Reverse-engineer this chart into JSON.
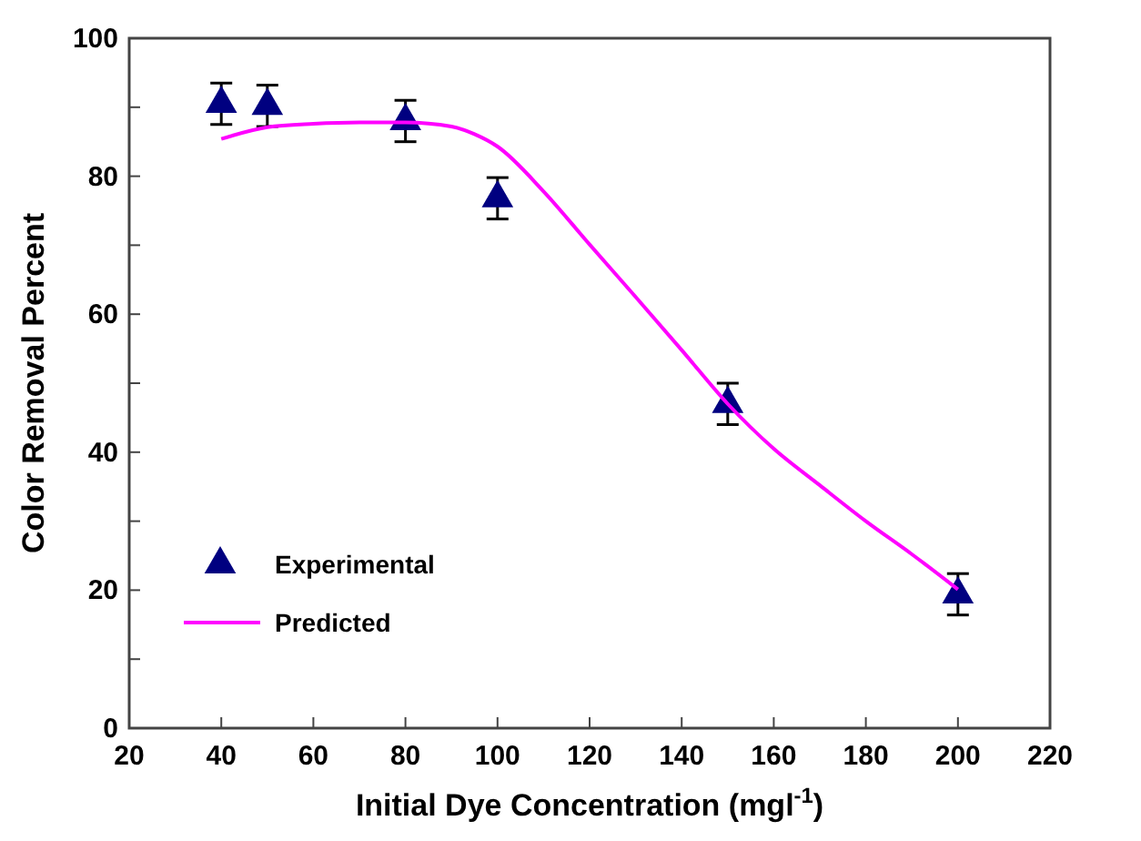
{
  "chart_data": {
    "type": "scatter",
    "xlabel": "Initial Dye Concentration (mgl$^{-1}$)",
    "ylabel": "Color Removal Percent",
    "xlim": [
      20,
      220
    ],
    "ylim": [
      0,
      100
    ],
    "xticks": [
      20,
      40,
      60,
      80,
      100,
      120,
      140,
      160,
      180,
      200,
      220
    ],
    "yticks": [
      0,
      {
        "value": 10,
        "label": null
      },
      20,
      {
        "value": 30,
        "label": null
      },
      40,
      {
        "value": 50,
        "label": null
      },
      60,
      {
        "value": 70,
        "label": null
      },
      80,
      {
        "value": 90,
        "label": null
      },
      100
    ],
    "legend": "bottom left",
    "grid": false,
    "series": [
      {
        "name": "Experimental",
        "marker": "triangle",
        "color": "#000080",
        "x": [
          40,
          50,
          80,
          100,
          150,
          200
        ],
        "values": [
          90.5,
          90.2,
          88,
          76.8,
          47,
          19.4
        ],
        "errors": [
          3,
          3,
          3,
          3,
          3,
          3
        ]
      },
      {
        "name": "Predicted",
        "type": "line",
        "marker": "none",
        "line_style": "solid",
        "color": "#ff00ff",
        "x": [
          40,
          50,
          60,
          70,
          80,
          90,
          95,
          100,
          110,
          120,
          130,
          140,
          150,
          160,
          170,
          180,
          190,
          200
        ],
        "values": [
          85.4,
          87.1,
          87.6,
          87.8,
          87.8,
          87.2,
          86.1,
          84.3,
          77.8,
          70.1,
          62.5,
          54.8,
          47,
          40.5,
          35.2,
          30,
          25.2,
          20.1
        ]
      }
    ]
  }
}
